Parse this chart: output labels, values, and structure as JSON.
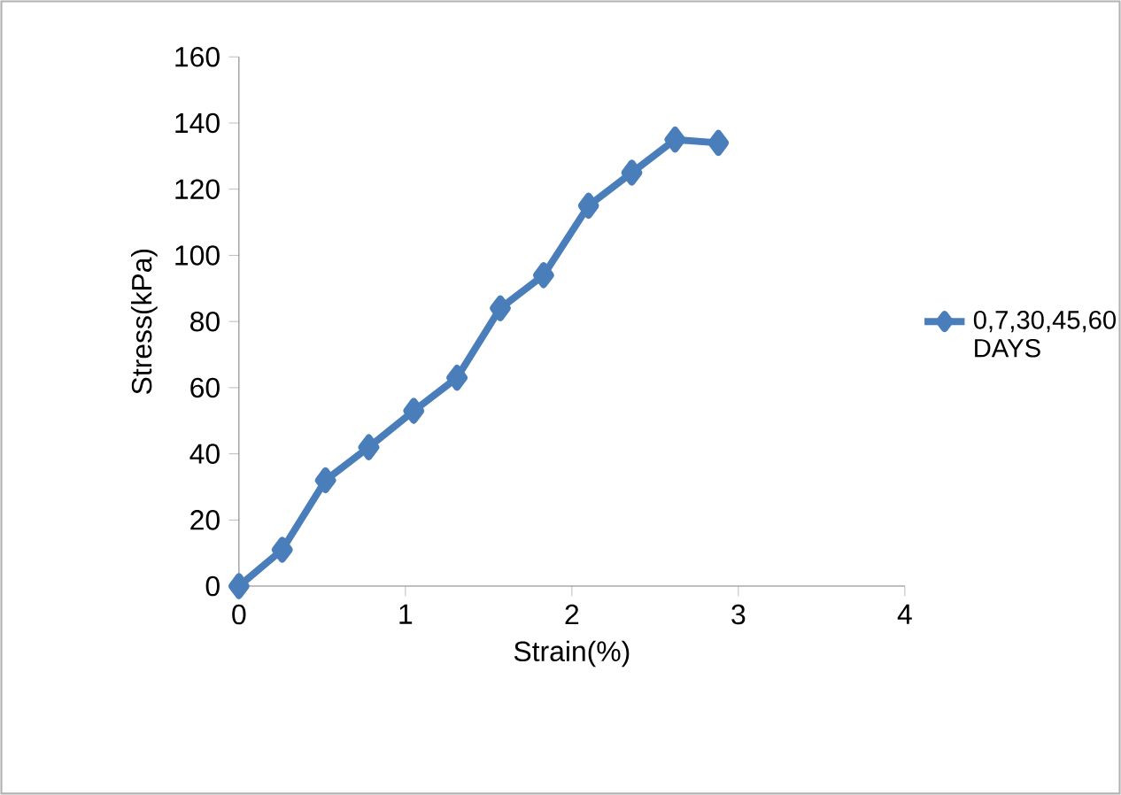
{
  "chart_data": {
    "type": "line",
    "xlabel": "Strain(%)",
    "ylabel": "Stress(kPa)",
    "x": [
      0,
      0.26,
      0.52,
      0.78,
      1.05,
      1.31,
      1.57,
      1.83,
      2.1,
      2.36,
      2.62,
      2.88
    ],
    "series": [
      {
        "name": "0,7,30,45,60 DAYS",
        "color": "#4a7ebb",
        "values": [
          0,
          11,
          32,
          42,
          53,
          63,
          84,
          94,
          115,
          125,
          135,
          134
        ]
      }
    ],
    "xlim": [
      0,
      4
    ],
    "xticks": [
      0,
      1,
      2,
      3,
      4
    ],
    "ylim": [
      0,
      160
    ],
    "yticks": [
      0,
      20,
      40,
      60,
      80,
      100,
      120,
      140,
      160
    ],
    "grid": false,
    "legend": "right",
    "marker": "diamond",
    "line_style": "solid"
  }
}
